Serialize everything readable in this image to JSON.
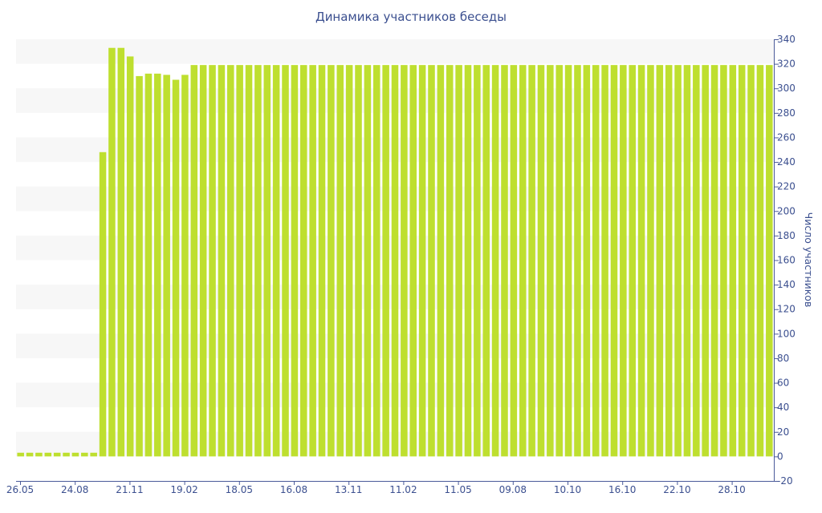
{
  "chart_data": {
    "type": "bar",
    "title": "Динамика участников беседы",
    "xlabel": "",
    "ylabel": "Число участников",
    "y_axis_side": "right",
    "ylim": [
      -20,
      340
    ],
    "y_ticks": [
      -20,
      0,
      20,
      40,
      60,
      80,
      100,
      120,
      140,
      160,
      180,
      200,
      220,
      240,
      260,
      280,
      300,
      320,
      340
    ],
    "x_tick_labels": [
      "26.05",
      "24.08",
      "21.11",
      "19.02",
      "18.05",
      "16.08",
      "13.11",
      "11.02",
      "11.05",
      "09.08",
      "10.10",
      "16.10",
      "22.10",
      "28.10"
    ],
    "grid": "alternating horizontal bands",
    "bar_color": "#bedf2f",
    "series": [
      {
        "values": [
          3,
          3,
          3,
          3,
          3,
          3,
          3,
          3,
          3,
          248,
          333,
          333,
          326,
          310,
          312,
          312,
          311,
          307,
          311,
          319,
          319,
          319,
          319,
          319,
          319,
          319,
          319,
          319,
          319,
          319,
          319,
          319,
          319,
          319,
          319,
          319,
          319,
          319,
          319,
          319,
          319,
          319,
          319,
          319,
          319,
          319,
          319,
          319,
          319,
          319,
          319,
          319,
          319,
          319,
          319,
          319,
          319,
          319,
          319,
          319,
          319,
          319,
          319,
          319,
          319,
          319,
          319,
          319,
          319,
          319,
          319,
          319,
          319,
          319,
          319,
          319,
          319,
          319,
          319,
          319,
          319,
          319,
          319
        ]
      }
    ]
  }
}
